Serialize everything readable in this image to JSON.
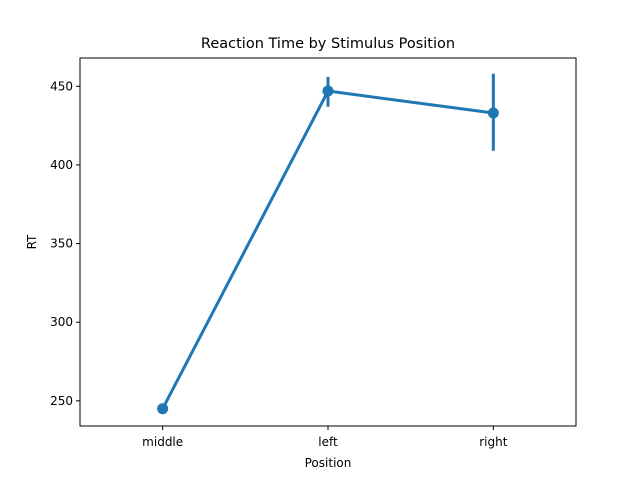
{
  "chart_data": {
    "type": "line",
    "title": "Reaction Time by Stimulus Position",
    "xlabel": "Position",
    "ylabel": "RT",
    "categories": [
      "middle",
      "left",
      "right"
    ],
    "series": [
      {
        "values": [
          245,
          447,
          433
        ],
        "ci_low": [
          245,
          437,
          409
        ],
        "ci_high": [
          245,
          456,
          458
        ],
        "color": "#1f77b4"
      }
    ],
    "ylim": [
      234,
      468
    ],
    "yticks": [
      250,
      300,
      350,
      400,
      450
    ],
    "grid": false,
    "markers": "circle",
    "error_bars": "vertical"
  }
}
